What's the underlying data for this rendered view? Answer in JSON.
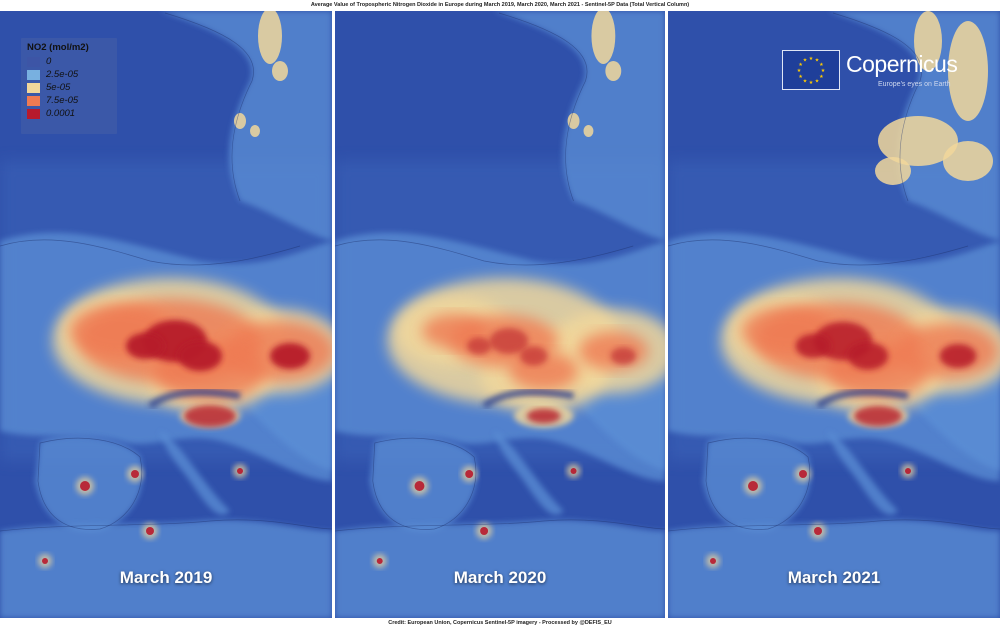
{
  "title": "Average Value of Tropospheric Nitrogen Dioxide in Europe during March 2019, March 2020, March 2021 - Sentinel-5P Data (Total Vertical Column)",
  "credit": "Credit: European Union, Copernicus Sentinel-5P imagery - Processed by @DEFIS_EU",
  "legend": {
    "title": "NO2 (mol/m2)",
    "items": [
      {
        "label": "0",
        "color": "#3d55a6"
      },
      {
        "label": "2.5e-05",
        "color": "#78b0e0"
      },
      {
        "label": "5e-05",
        "color": "#f1d79b"
      },
      {
        "label": "7.5e-05",
        "color": "#ef7a52"
      },
      {
        "label": "0.0001",
        "color": "#b71a2c"
      }
    ]
  },
  "branding": {
    "name": "Copernicus",
    "subtitle": "Europe's eyes on Earth",
    "flag_color": "#1f3f9a",
    "star_color": "#ffcc00"
  },
  "panels": [
    {
      "label": "March 2019",
      "intensity": 1.0
    },
    {
      "label": "March 2020",
      "intensity": 0.55
    },
    {
      "label": "March 2021",
      "intensity": 0.9
    }
  ]
}
